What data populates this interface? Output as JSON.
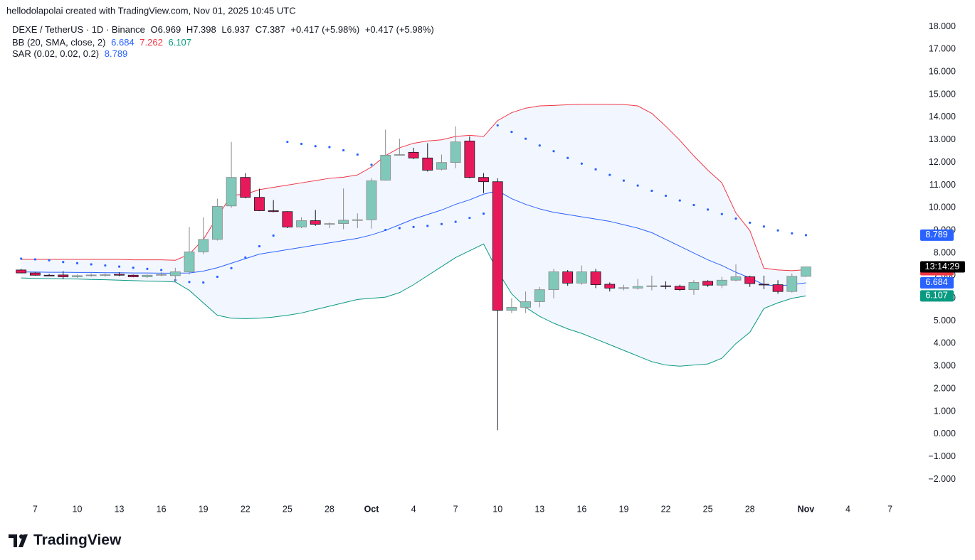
{
  "chart_data": {
    "type": "candlestick",
    "attribution": "hellodolapolai created with TradingView.com, Nov 01, 2025 10:45 UTC",
    "title": "DEXE / TetherUS · 1D · Binance",
    "ohlc_labels": [
      "O",
      "H",
      "L",
      "C"
    ],
    "change_labels": [
      "+0.417 (+5.98%)",
      "+0.417 (+5.98%)"
    ],
    "brand": "TradingView",
    "countdown": "13:14:29",
    "x": [
      "2025-09-06",
      "2025-09-07",
      "2025-09-08",
      "2025-09-09",
      "2025-09-10",
      "2025-09-11",
      "2025-09-12",
      "2025-09-13",
      "2025-09-14",
      "2025-09-15",
      "2025-09-16",
      "2025-09-17",
      "2025-09-18",
      "2025-09-19",
      "2025-09-20",
      "2025-09-21",
      "2025-09-22",
      "2025-09-23",
      "2025-09-24",
      "2025-09-25",
      "2025-09-26",
      "2025-09-27",
      "2025-09-28",
      "2025-09-29",
      "2025-09-30",
      "2025-10-01",
      "2025-10-02",
      "2025-10-03",
      "2025-10-04",
      "2025-10-05",
      "2025-10-06",
      "2025-10-07",
      "2025-10-08",
      "2025-10-09",
      "2025-10-10",
      "2025-10-11",
      "2025-10-12",
      "2025-10-13",
      "2025-10-14",
      "2025-10-15",
      "2025-10-16",
      "2025-10-17",
      "2025-10-18",
      "2025-10-19",
      "2025-10-20",
      "2025-10-21",
      "2025-10-22",
      "2025-10-23",
      "2025-10-24",
      "2025-10-25",
      "2025-10-26",
      "2025-10-27",
      "2025-10-28",
      "2025-10-29",
      "2025-10-30",
      "2025-10-31",
      "2025-11-01"
    ],
    "open": [
      7.25,
      7.12,
      7.02,
      7.03,
      6.95,
      7.0,
      7.03,
      7.06,
      7.02,
      6.95,
      7.02,
      7.0,
      7.17,
      8.05,
      8.6,
      10.08,
      11.34,
      10.46,
      9.87,
      9.83,
      9.15,
      9.43,
      9.27,
      9.3,
      9.45,
      9.47,
      11.22,
      12.32,
      12.45,
      12.2,
      11.7,
      12.0,
      12.95,
      11.34,
      11.15,
      5.47,
      5.6,
      5.85,
      6.38,
      7.17,
      6.67,
      7.17,
      6.62,
      6.45,
      6.45,
      6.52,
      6.55,
      6.53,
      6.38,
      6.75,
      6.58,
      6.8,
      6.95,
      6.62,
      6.6,
      6.3,
      6.969
    ],
    "high": [
      7.3,
      7.15,
      7.08,
      7.2,
      7.05,
      7.1,
      7.1,
      7.15,
      7.05,
      7.05,
      7.15,
      7.35,
      9.15,
      9.58,
      10.4,
      12.91,
      11.53,
      10.84,
      10.34,
      9.85,
      9.58,
      9.9,
      9.35,
      10.85,
      9.75,
      11.3,
      13.45,
      13.05,
      12.65,
      12.85,
      12.35,
      13.6,
      13.15,
      11.53,
      11.3,
      6.0,
      6.3,
      6.5,
      7.3,
      7.25,
      7.45,
      7.3,
      6.7,
      6.6,
      6.85,
      7.0,
      6.75,
      6.6,
      6.8,
      6.8,
      6.95,
      7.5,
      7.0,
      7.0,
      6.8,
      7.1,
      7.398
    ],
    "low": [
      7.1,
      7.0,
      6.98,
      6.85,
      6.9,
      6.95,
      6.95,
      6.98,
      6.93,
      6.9,
      6.98,
      6.7,
      7.05,
      7.95,
      8.55,
      10.0,
      10.42,
      9.85,
      9.8,
      9.1,
      9.1,
      9.2,
      9.1,
      9.05,
      9.1,
      9.08,
      11.2,
      12.3,
      12.15,
      11.6,
      11.65,
      11.75,
      11.3,
      10.65,
      0.17,
      5.35,
      5.35,
      5.6,
      6.0,
      6.55,
      6.6,
      6.45,
      6.3,
      6.35,
      6.38,
      6.35,
      6.4,
      6.33,
      6.15,
      6.5,
      6.45,
      6.75,
      6.5,
      6.4,
      6.2,
      6.25,
      6.937
    ],
    "close": [
      7.12,
      7.02,
      7.0,
      6.95,
      7.0,
      7.03,
      7.04,
      7.02,
      6.95,
      7.02,
      7.05,
      7.17,
      8.05,
      8.6,
      10.06,
      11.34,
      10.46,
      9.87,
      9.83,
      9.15,
      9.43,
      9.27,
      9.3,
      9.45,
      9.47,
      11.19,
      12.32,
      12.35,
      12.2,
      11.66,
      12.0,
      12.91,
      11.34,
      11.15,
      5.47,
      5.6,
      5.85,
      6.38,
      7.17,
      6.67,
      7.17,
      6.6,
      6.45,
      6.47,
      6.52,
      6.55,
      6.53,
      6.38,
      6.7,
      6.58,
      6.8,
      6.95,
      6.65,
      6.6,
      6.3,
      6.97,
      7.387
    ],
    "up_color": "#7fc8ba",
    "down_color": "#e8195a",
    "bb": {
      "label": "BB (20, SMA, close, 2)",
      "fill": "#2962ff",
      "basis": {
        "color": "#2962ff",
        "values": [
          7.16,
          7.16,
          7.15,
          7.15,
          7.14,
          7.14,
          7.13,
          7.13,
          7.12,
          7.12,
          7.11,
          7.11,
          7.12,
          7.2,
          7.35,
          7.55,
          7.75,
          7.95,
          8.05,
          8.15,
          8.25,
          8.35,
          8.45,
          8.55,
          8.65,
          8.8,
          9.0,
          9.25,
          9.5,
          9.7,
          9.9,
          10.15,
          10.35,
          10.6,
          10.75,
          10.4,
          10.15,
          9.95,
          9.8,
          9.7,
          9.6,
          9.5,
          9.4,
          9.25,
          9.1,
          8.9,
          8.6,
          8.3,
          8.0,
          7.7,
          7.45,
          7.15,
          6.9,
          6.6,
          6.55,
          6.6,
          6.684
        ]
      },
      "upper": {
        "color": "#f23645",
        "values": [
          7.72,
          7.72,
          7.72,
          7.72,
          7.72,
          7.72,
          7.72,
          7.72,
          7.7,
          7.7,
          7.7,
          7.68,
          7.95,
          8.6,
          9.6,
          10.55,
          10.6,
          10.8,
          10.9,
          11.0,
          11.1,
          11.2,
          11.3,
          11.35,
          11.45,
          11.8,
          12.3,
          12.65,
          12.85,
          12.95,
          13.0,
          13.15,
          13.2,
          13.15,
          13.85,
          14.2,
          14.4,
          14.5,
          14.52,
          14.55,
          14.57,
          14.57,
          14.57,
          14.56,
          14.5,
          14.17,
          13.6,
          12.98,
          12.29,
          11.66,
          11.1,
          9.77,
          8.99,
          7.33,
          7.25,
          7.22,
          7.262
        ]
      },
      "lower": {
        "color": "#089981",
        "values": [
          6.9,
          6.88,
          6.87,
          6.86,
          6.85,
          6.83,
          6.82,
          6.8,
          6.78,
          6.76,
          6.75,
          6.72,
          6.35,
          5.8,
          5.25,
          5.12,
          5.1,
          5.12,
          5.17,
          5.25,
          5.35,
          5.5,
          5.65,
          5.8,
          5.95,
          6.0,
          6.05,
          6.25,
          6.6,
          7.0,
          7.4,
          7.8,
          8.1,
          8.4,
          7.2,
          6.2,
          5.6,
          5.2,
          4.9,
          4.65,
          4.45,
          4.2,
          3.95,
          3.7,
          3.45,
          3.2,
          3.05,
          3.0,
          3.05,
          3.1,
          3.35,
          4.0,
          4.5,
          5.55,
          5.8,
          6.0,
          6.107
        ]
      }
    },
    "sar": {
      "label": "SAR (0.02, 0.02, 0.2)",
      "color": "#2962ff",
      "values": [
        7.75,
        7.72,
        7.68,
        7.6,
        7.55,
        7.5,
        7.45,
        7.4,
        7.35,
        7.3,
        7.25,
        6.8,
        6.72,
        6.7,
        6.95,
        7.33,
        7.8,
        8.3,
        8.77,
        12.91,
        12.82,
        12.72,
        12.68,
        12.54,
        12.35,
        11.9,
        9.02,
        9.1,
        9.15,
        9.2,
        9.28,
        9.38,
        9.55,
        9.74,
        13.64,
        13.35,
        13.05,
        12.75,
        12.5,
        12.2,
        11.95,
        11.7,
        11.45,
        11.2,
        10.98,
        10.75,
        10.53,
        10.32,
        10.12,
        9.92,
        9.72,
        9.52,
        9.34,
        9.17,
        9.0,
        8.87,
        8.789
      ]
    },
    "xlim": [
      "2025-09-05",
      "2025-11-09"
    ],
    "xticks": [
      {
        "value": "2025-09-07",
        "label": "7"
      },
      {
        "value": "2025-09-10",
        "label": "10"
      },
      {
        "value": "2025-09-13",
        "label": "13"
      },
      {
        "value": "2025-09-16",
        "label": "16"
      },
      {
        "value": "2025-09-19",
        "label": "19"
      },
      {
        "value": "2025-09-22",
        "label": "22"
      },
      {
        "value": "2025-09-25",
        "label": "25"
      },
      {
        "value": "2025-09-28",
        "label": "28"
      },
      {
        "value": "2025-10-01",
        "label": "Oct"
      },
      {
        "value": "2025-10-04",
        "label": "4"
      },
      {
        "value": "2025-10-07",
        "label": "7"
      },
      {
        "value": "2025-10-10",
        "label": "10"
      },
      {
        "value": "2025-10-13",
        "label": "13"
      },
      {
        "value": "2025-10-16",
        "label": "16"
      },
      {
        "value": "2025-10-19",
        "label": "19"
      },
      {
        "value": "2025-10-22",
        "label": "22"
      },
      {
        "value": "2025-10-25",
        "label": "25"
      },
      {
        "value": "2025-10-28",
        "label": "28"
      },
      {
        "value": "2025-11-01",
        "label": "Nov"
      },
      {
        "value": "2025-11-04",
        "label": "4"
      },
      {
        "value": "2025-11-07",
        "label": "7"
      }
    ],
    "ylim": [
      -2.8,
      18.3
    ],
    "yticks": [
      {
        "value": 18,
        "label": "18.000"
      },
      {
        "value": 17,
        "label": "17.000"
      },
      {
        "value": 16,
        "label": "16.000"
      },
      {
        "value": 15,
        "label": "15.000"
      },
      {
        "value": 14,
        "label": "14.000"
      },
      {
        "value": 13,
        "label": "13.000"
      },
      {
        "value": 12,
        "label": "12.000"
      },
      {
        "value": 11,
        "label": "11.000"
      },
      {
        "value": 10,
        "label": "10.000"
      },
      {
        "value": 9,
        "label": "9.000"
      },
      {
        "value": 8,
        "label": "8.000"
      },
      {
        "value": 7,
        "label": "7.000"
      },
      {
        "value": 6,
        "label": "6.000"
      },
      {
        "value": 5,
        "label": "5.000"
      },
      {
        "value": 4,
        "label": "4.000"
      },
      {
        "value": 3,
        "label": "3.000"
      },
      {
        "value": 2,
        "label": "2.000"
      },
      {
        "value": 1,
        "label": "1.000"
      },
      {
        "value": 0,
        "label": "0.000"
      },
      {
        "value": -1,
        "label": "−1.000"
      },
      {
        "value": -2,
        "label": "−2.000"
      }
    ],
    "grid": false
  }
}
